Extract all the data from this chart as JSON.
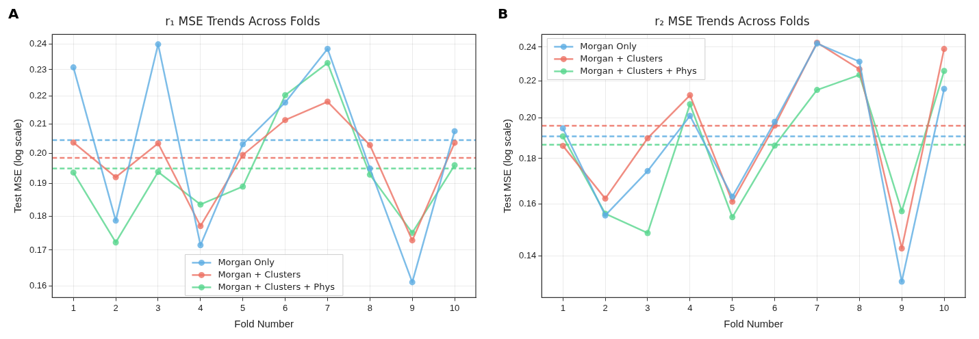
{
  "chart_data": [
    {
      "type": "line",
      "title": "r₁ MSE Trends Across Folds",
      "xlabel": "Fold Number",
      "ylabel": "Test MSE (log scale)",
      "annotations": [
        "A"
      ],
      "categories": [
        "1",
        "2",
        "3",
        "4",
        "5",
        "6",
        "7",
        "8",
        "9",
        "10"
      ],
      "series": [
        {
          "name": "Morgan Only",
          "color": "#5dade2",
          "values": [
            0.2309,
            0.1786,
            0.24,
            0.1714,
            0.203,
            0.2177,
            0.2382,
            0.1949,
            0.1611,
            0.2075
          ]
        },
        {
          "name": "Morgan + Clusters",
          "color": "#ec7063",
          "values": [
            0.2036,
            0.1921,
            0.2033,
            0.177,
            0.1994,
            0.2114,
            0.218,
            0.2027,
            0.1728,
            0.2035
          ]
        },
        {
          "name": "Morgan + Clusters + Phys",
          "color": "#58d68d",
          "values": [
            0.1936,
            0.1722,
            0.1938,
            0.1835,
            0.1891,
            0.2204,
            0.2326,
            0.1929,
            0.175,
            0.196
          ]
        }
      ],
      "ref_lines": [
        {
          "axis": "y",
          "value": 0.2044,
          "color": "#5dade2",
          "line_style": "dashed"
        },
        {
          "axis": "y",
          "value": 0.1984,
          "color": "#ec7063",
          "line_style": "dashed"
        },
        {
          "axis": "y",
          "value": 0.1949,
          "color": "#58d68d",
          "line_style": "dashed"
        }
      ],
      "log": "y",
      "ylim": [
        0.157,
        0.244
      ],
      "yticks": [
        0.16,
        0.17,
        0.18,
        0.19,
        {
          "value": 0.2,
          "label": "0.20"
        },
        0.21,
        0.22,
        0.23,
        0.24
      ],
      "grid": true,
      "legend": "bottom",
      "marker": "circle",
      "line_style": "solid"
    },
    {
      "type": "line",
      "title": "r₂ MSE Trends Across Folds",
      "xlabel": "Fold Number",
      "ylabel": "Test MSE (log scale)",
      "annotations": [
        "B"
      ],
      "categories": [
        "1",
        "2",
        "3",
        "4",
        "5",
        "6",
        "7",
        "8",
        "9",
        "10"
      ],
      "series": [
        {
          "name": "Morgan Only",
          "color": "#5dade2",
          "values": [
            0.1946,
            0.1554,
            0.1743,
            0.201,
            0.1631,
            0.1979,
            0.2423,
            0.2312,
            0.131,
            0.2155
          ]
        },
        {
          "name": "Morgan + Clusters",
          "color": "#ec7063",
          "values": [
            0.186,
            0.1623,
            0.1897,
            0.212,
            0.161,
            0.196,
            0.2428,
            0.2267,
            0.1427,
            0.2389
          ]
        },
        {
          "name": "Morgan + Clusters + Phys",
          "color": "#58d68d",
          "values": [
            0.1906,
            0.1561,
            0.1485,
            0.2071,
            0.1547,
            0.1861,
            0.2149,
            0.2234,
            0.1571,
            0.2257
          ]
        }
      ],
      "ref_lines": [
        {
          "axis": "y",
          "value": 0.1959,
          "color": "#ec7063",
          "line_style": "dashed"
        },
        {
          "axis": "y",
          "value": 0.1906,
          "color": "#5dade2",
          "line_style": "dashed"
        },
        {
          "axis": "y",
          "value": 0.1865,
          "color": "#58d68d",
          "line_style": "dashed"
        }
      ],
      "log": "y",
      "ylim": [
        0.1257,
        0.248
      ],
      "yticks": [
        0.14,
        0.16,
        0.18,
        {
          "value": 0.2,
          "label": "0.20"
        },
        0.22,
        0.24
      ],
      "grid": true,
      "legend": "top left",
      "marker": "circle",
      "line_style": "solid"
    }
  ]
}
